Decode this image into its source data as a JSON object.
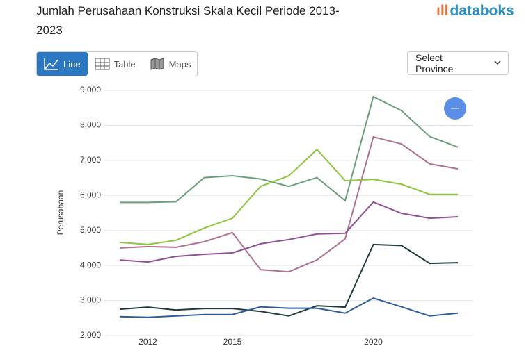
{
  "header": {
    "title": "Jumlah Perusahaan Konstruksi Skala Kecil Periode 2013-2023",
    "logo": "databoks"
  },
  "controls": {
    "tabs": [
      "Line",
      "Table",
      "Maps"
    ],
    "select": "Select Province"
  },
  "chart_data": {
    "type": "line",
    "y_label": "Perusahaan",
    "categories": [
      null,
      "2012",
      null,
      null,
      "2015",
      null,
      null,
      null,
      null,
      "2020",
      null,
      null,
      null
    ],
    "ylim": [
      2000,
      9000
    ],
    "yticks": [
      {
        "value": 2000,
        "label": "2,000"
      },
      {
        "value": 3000,
        "label": "3,000"
      },
      {
        "value": 4000,
        "label": "4,000"
      },
      {
        "value": 5000,
        "label": "5,000"
      },
      {
        "value": 6000,
        "label": "6,000"
      },
      {
        "value": 7000,
        "label": "7,000"
      },
      {
        "value": 8000,
        "label": "8,000"
      },
      {
        "value": 9000,
        "label": "9,000"
      }
    ],
    "grid": true,
    "series": [
      {
        "color": "#6a9e7a",
        "values": [
          5800,
          5800,
          5820,
          6510,
          6560,
          6470,
          6260,
          6510,
          5850,
          8820,
          8420,
          7680,
          7380
        ]
      },
      {
        "color": "#b0708f",
        "values": [
          4500,
          4540,
          4520,
          4680,
          4940,
          3880,
          3820,
          4160,
          4760,
          7670,
          7470,
          6900,
          6760
        ]
      },
      {
        "color": "#8cc63f",
        "values": [
          4660,
          4600,
          4720,
          5070,
          5350,
          6260,
          6560,
          7310,
          6420,
          6460,
          6320,
          6030,
          6030
        ]
      },
      {
        "color": "#8e4f93",
        "values": [
          4160,
          4100,
          4260,
          4320,
          4360,
          4620,
          4740,
          4900,
          4920,
          5810,
          5490,
          5350,
          5390
        ]
      },
      {
        "color": "#1e3a3c",
        "values": [
          2750,
          2810,
          2730,
          2770,
          2770,
          2690,
          2560,
          2850,
          2810,
          4600,
          4570,
          4060,
          4080
        ]
      },
      {
        "color": "#2e5d9b",
        "values": [
          2540,
          2520,
          2560,
          2600,
          2600,
          2820,
          2780,
          2780,
          2640,
          3070,
          2820,
          2560,
          2640
        ]
      }
    ]
  }
}
